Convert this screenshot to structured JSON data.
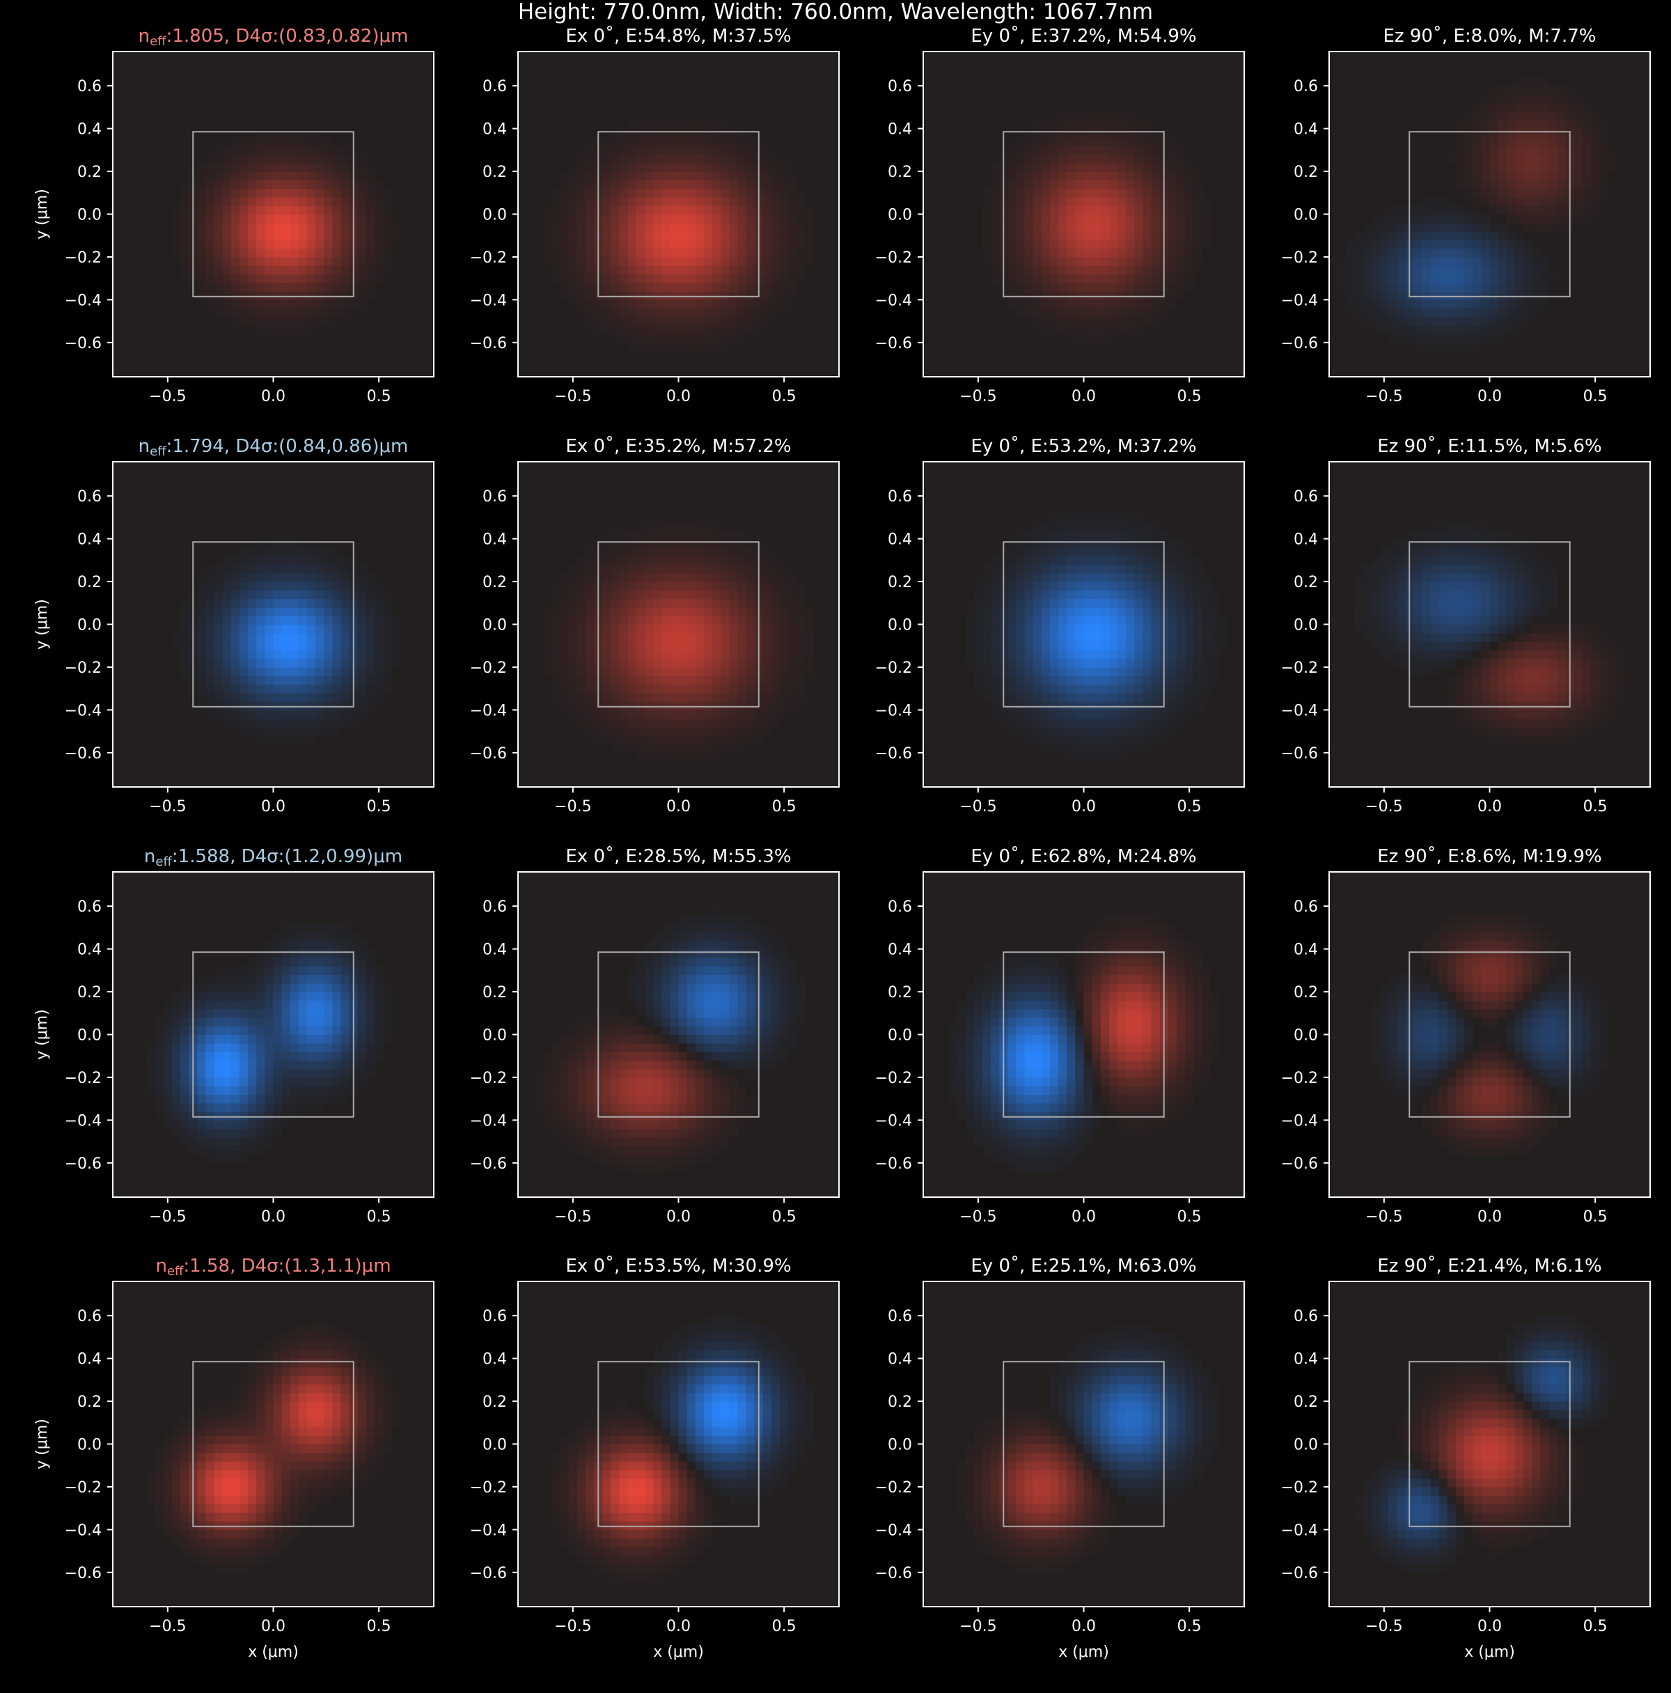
{
  "figure": {
    "suptitle": "Height: 770.0nm, Width: 760.0nm, Wavelength: 1067.7nm",
    "background": "#000000",
    "panel_background": "#231f1f",
    "positive_color": "#e8463a",
    "negative_color": "#2a86ff",
    "core_outline_color": "#a9a9a9",
    "mode_title_colors": {
      "red": "#f07f7b",
      "blue": "#a6cde6"
    }
  },
  "axes": {
    "xlabel": "x (μm)",
    "ylabel": "y (μm)",
    "xlim": [
      -0.76,
      0.76
    ],
    "ylim": [
      -0.76,
      0.76
    ],
    "xticks": [
      -0.5,
      0.0,
      0.5
    ],
    "xtick_labels": [
      "−0.5",
      "0.0",
      "0.5"
    ],
    "yticks": [
      0.6,
      0.4,
      0.2,
      0.0,
      -0.2,
      -0.4,
      -0.6
    ],
    "ytick_labels": [
      "0.6",
      "0.4",
      "0.2",
      "0.0",
      "−0.2",
      "−0.4",
      "−0.6"
    ],
    "core_box": {
      "x": [
        -0.38,
        0.38
      ],
      "y": [
        -0.385,
        0.385
      ]
    }
  },
  "chart_data": {
    "type": "heatmap",
    "rows": [
      {
        "mode_title": {
          "prefix": "n",
          "sub": "eff",
          "suffix": ":1.805, D4σ:(0.83,0.82)μm",
          "color": "red"
        },
        "panels": [
          {
            "title": "",
            "lobes": [
              {
                "cx": 0.05,
                "cy": -0.08,
                "sx": 0.19,
                "sy": 0.17,
                "amp": 1.0
              }
            ]
          },
          {
            "title": "Ex 0˚, E:54.8%, M:37.5%",
            "lobes": [
              {
                "cx": 0.0,
                "cy": -0.1,
                "sx": 0.23,
                "sy": 0.2,
                "amp": 0.95
              }
            ]
          },
          {
            "title": "Ey 0˚, E:37.2%, M:54.9%",
            "lobes": [
              {
                "cx": 0.05,
                "cy": -0.05,
                "sx": 0.2,
                "sy": 0.2,
                "amp": 0.8
              }
            ]
          },
          {
            "title": "Ez 90˚, E:8.0%, M:7.7%",
            "lobes": [
              {
                "cx": -0.2,
                "cy": -0.28,
                "sx": 0.2,
                "sy": 0.14,
                "amp": -0.5
              },
              {
                "cx": 0.2,
                "cy": 0.25,
                "sx": 0.16,
                "sy": 0.16,
                "amp": 0.35
              }
            ]
          }
        ]
      },
      {
        "mode_title": {
          "prefix": "n",
          "sub": "eff",
          "suffix": ":1.794, D4σ:(0.84,0.86)μm",
          "color": "blue"
        },
        "panels": [
          {
            "title": "",
            "lobes": [
              {
                "cx": 0.07,
                "cy": -0.08,
                "sx": 0.19,
                "sy": 0.17,
                "amp": -1.0
              }
            ]
          },
          {
            "title": "Ex 0˚, E:35.2%, M:57.2%",
            "lobes": [
              {
                "cx": 0.0,
                "cy": -0.08,
                "sx": 0.24,
                "sy": 0.21,
                "amp": 0.8
              }
            ]
          },
          {
            "title": "Ey 0˚, E:53.2%, M:37.2%",
            "lobes": [
              {
                "cx": 0.05,
                "cy": -0.05,
                "sx": 0.22,
                "sy": 0.21,
                "amp": -1.0
              }
            ]
          },
          {
            "title": "Ez 90˚, E:11.5%, M:5.6%",
            "lobes": [
              {
                "cx": -0.15,
                "cy": 0.1,
                "sx": 0.2,
                "sy": 0.15,
                "amp": -0.45
              },
              {
                "cx": 0.2,
                "cy": -0.25,
                "sx": 0.18,
                "sy": 0.13,
                "amp": 0.45
              }
            ]
          }
        ]
      },
      {
        "mode_title": {
          "prefix": "n",
          "sub": "eff",
          "suffix": ":1.588, D4σ:(1.2,0.99)μm",
          "color": "blue"
        },
        "panels": [
          {
            "title": "",
            "lobes": [
              {
                "cx": -0.23,
                "cy": -0.15,
                "sx": 0.13,
                "sy": 0.16,
                "amp": -1.0
              },
              {
                "cx": 0.2,
                "cy": 0.1,
                "sx": 0.13,
                "sy": 0.16,
                "amp": -0.85
              }
            ]
          },
          {
            "title": "Ex 0˚, E:28.5%, M:55.3%",
            "lobes": [
              {
                "cx": 0.17,
                "cy": 0.15,
                "sx": 0.16,
                "sy": 0.16,
                "amp": -0.75
              },
              {
                "cx": -0.15,
                "cy": -0.25,
                "sx": 0.2,
                "sy": 0.15,
                "amp": 0.65
              }
            ]
          },
          {
            "title": "Ey 0˚, E:62.8%, M:24.8%",
            "lobes": [
              {
                "cx": -0.23,
                "cy": -0.12,
                "sx": 0.15,
                "sy": 0.19,
                "amp": -1.0
              },
              {
                "cx": 0.23,
                "cy": 0.05,
                "sx": 0.15,
                "sy": 0.19,
                "amp": 0.85
              }
            ]
          },
          {
            "title": "Ez 90˚, E:8.6%, M:19.9%",
            "lobes": [
              {
                "cx": 0.0,
                "cy": 0.28,
                "sx": 0.16,
                "sy": 0.12,
                "amp": 0.45
              },
              {
                "cx": 0.0,
                "cy": -0.28,
                "sx": 0.16,
                "sy": 0.12,
                "amp": 0.45
              },
              {
                "cx": -0.28,
                "cy": 0.0,
                "sx": 0.12,
                "sy": 0.16,
                "amp": -0.35
              },
              {
                "cx": 0.28,
                "cy": 0.0,
                "sx": 0.12,
                "sy": 0.16,
                "amp": -0.35
              }
            ]
          }
        ]
      },
      {
        "mode_title": {
          "prefix": "n",
          "sub": "eff",
          "suffix": ":1.58, D4σ:(1.3,1.1)μm",
          "color": "red"
        },
        "panels": [
          {
            "title": "",
            "lobes": [
              {
                "cx": -0.2,
                "cy": -0.2,
                "sx": 0.14,
                "sy": 0.14,
                "amp": 1.0
              },
              {
                "cx": 0.2,
                "cy": 0.15,
                "sx": 0.14,
                "sy": 0.15,
                "amp": 0.9
              }
            ]
          },
          {
            "title": "Ex 0˚, E:53.5%, M:30.9%",
            "lobes": [
              {
                "cx": -0.2,
                "cy": -0.22,
                "sx": 0.15,
                "sy": 0.15,
                "amp": 1.0
              },
              {
                "cx": 0.22,
                "cy": 0.15,
                "sx": 0.15,
                "sy": 0.16,
                "amp": -1.0
              }
            ]
          },
          {
            "title": "Ey 0˚, E:25.1%, M:63.0%",
            "lobes": [
              {
                "cx": -0.2,
                "cy": -0.2,
                "sx": 0.15,
                "sy": 0.15,
                "amp": 0.7
              },
              {
                "cx": 0.22,
                "cy": 0.12,
                "sx": 0.16,
                "sy": 0.16,
                "amp": -0.75
              }
            ]
          },
          {
            "title": "Ez 90˚, E:21.4%, M:6.1%",
            "lobes": [
              {
                "cx": 0.0,
                "cy": -0.05,
                "sx": 0.17,
                "sy": 0.17,
                "amp": 0.8
              },
              {
                "cx": -0.32,
                "cy": -0.3,
                "sx": 0.12,
                "sy": 0.12,
                "amp": -0.5
              },
              {
                "cx": 0.3,
                "cy": 0.3,
                "sx": 0.12,
                "sy": 0.12,
                "amp": -0.5
              }
            ]
          }
        ]
      }
    ]
  }
}
